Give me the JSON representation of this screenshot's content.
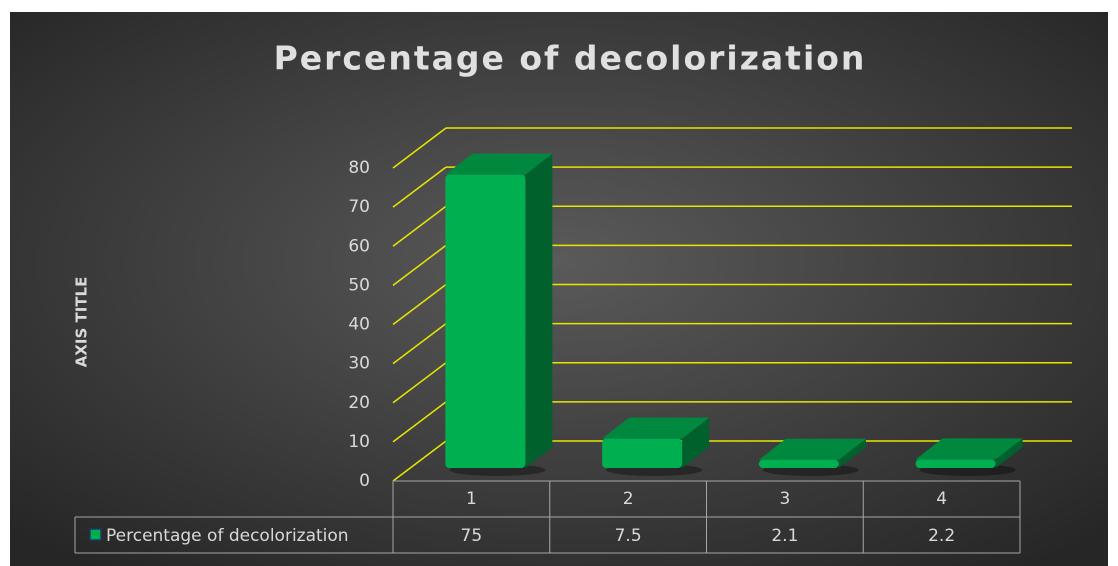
{
  "chart_data": {
    "type": "bar3d",
    "title": "Percentage of decolorization",
    "y_label": "AXIS TITLE",
    "categories": [
      "1",
      "2",
      "3",
      "4"
    ],
    "series": [
      {
        "name": "Percentage of decolorization",
        "color": "#00b050",
        "values": [
          75,
          7.5,
          2.1,
          2.2
        ]
      }
    ],
    "ylim": [
      0,
      80
    ],
    "yticks": [
      0,
      10,
      20,
      30,
      40,
      50,
      60,
      70,
      80
    ],
    "grid": true,
    "grid_color": "#e6e600",
    "data_table": true
  }
}
